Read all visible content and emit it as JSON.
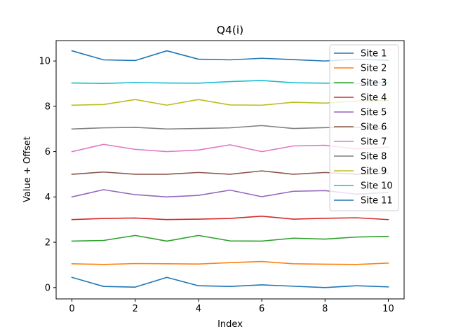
{
  "chart_data": {
    "type": "line",
    "title": "Q4(i)",
    "xlabel": "Index",
    "ylabel": "Value + Offset",
    "xlim": [
      -0.5,
      10.5
    ],
    "ylim": [
      -0.5,
      10.9
    ],
    "xticks": [
      "0",
      "2",
      "4",
      "6",
      "8",
      "10"
    ],
    "yticks": [
      "0",
      "2",
      "4",
      "6",
      "8",
      "10"
    ],
    "x": [
      0,
      1,
      2,
      3,
      4,
      5,
      6,
      7,
      8,
      9,
      10
    ],
    "grid": false,
    "legend_position": "top-right",
    "series": [
      {
        "name": "Site 1",
        "color": "#1f77b4",
        "values": [
          0.45,
          0.05,
          0.02,
          0.45,
          0.08,
          0.05,
          0.12,
          0.06,
          0.0,
          0.08,
          0.03
        ]
      },
      {
        "name": "Site 2",
        "color": "#ff7f0e",
        "values": [
          1.05,
          1.02,
          1.06,
          1.05,
          1.04,
          1.1,
          1.15,
          1.05,
          1.03,
          1.02,
          1.08
        ]
      },
      {
        "name": "Site 3",
        "color": "#2ca02c",
        "values": [
          2.05,
          2.08,
          2.3,
          2.05,
          2.3,
          2.06,
          2.05,
          2.18,
          2.14,
          2.23,
          2.26
        ]
      },
      {
        "name": "Site 4",
        "color": "#d62728",
        "values": [
          3.0,
          3.05,
          3.07,
          3.0,
          3.02,
          3.05,
          3.15,
          3.02,
          3.06,
          3.08,
          3.0
        ]
      },
      {
        "name": "Site 5",
        "color": "#9467bd",
        "values": [
          4.0,
          4.32,
          4.1,
          4.0,
          4.07,
          4.3,
          4.01,
          4.25,
          4.28,
          4.12,
          4.2
        ]
      },
      {
        "name": "Site 6",
        "color": "#8c564b",
        "values": [
          5.0,
          5.1,
          5.0,
          5.0,
          5.08,
          5.0,
          5.15,
          5.0,
          5.08,
          5.0,
          5.05
        ]
      },
      {
        "name": "Site 7",
        "color": "#e377c2",
        "values": [
          6.0,
          6.32,
          6.1,
          6.0,
          6.07,
          6.3,
          6.0,
          6.25,
          6.28,
          6.12,
          6.2
        ]
      },
      {
        "name": "Site 8",
        "color": "#7f7f7f",
        "values": [
          7.0,
          7.05,
          7.07,
          7.0,
          7.02,
          7.05,
          7.15,
          7.02,
          7.06,
          7.08,
          7.0
        ]
      },
      {
        "name": "Site 9",
        "color": "#bcbd22",
        "values": [
          8.05,
          8.08,
          8.3,
          8.05,
          8.3,
          8.06,
          8.05,
          8.18,
          8.14,
          8.23,
          8.26
        ]
      },
      {
        "name": "Site 10",
        "color": "#17becf",
        "values": [
          9.03,
          9.01,
          9.05,
          9.03,
          9.02,
          9.09,
          9.14,
          9.04,
          9.02,
          9.0,
          9.06
        ]
      },
      {
        "name": "Site 11",
        "color": "#1f77b4",
        "values": [
          10.45,
          10.05,
          10.02,
          10.45,
          10.08,
          10.05,
          10.12,
          10.06,
          10.0,
          10.08,
          10.03
        ]
      }
    ]
  }
}
